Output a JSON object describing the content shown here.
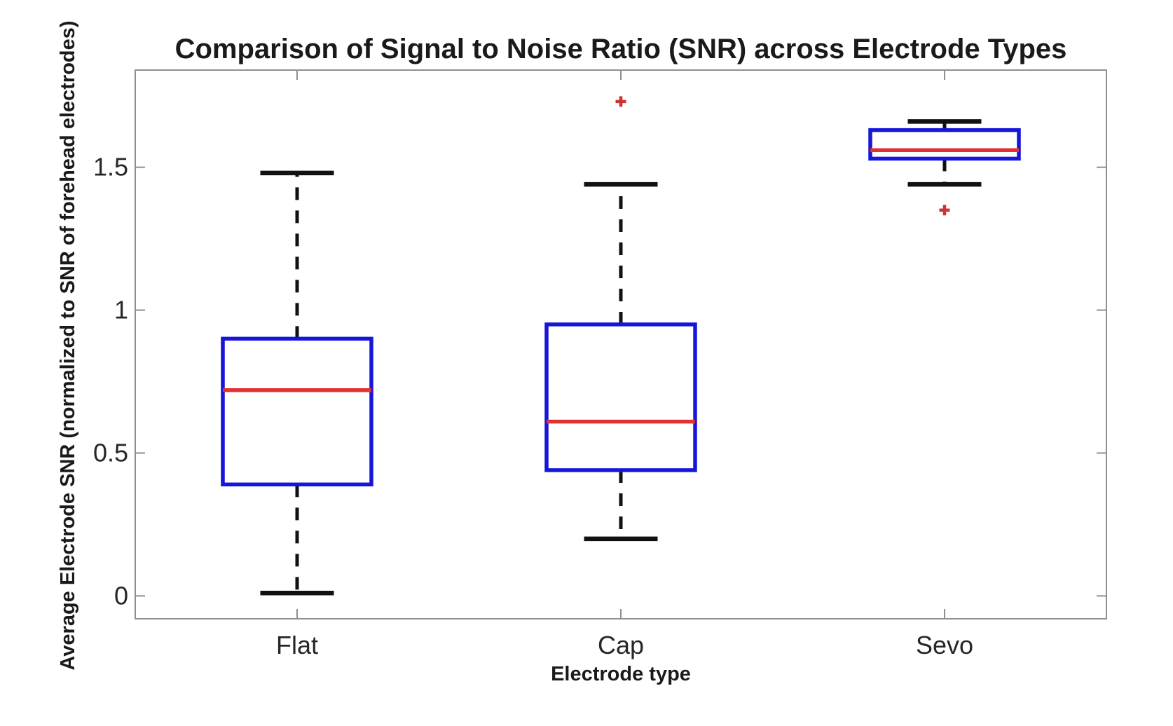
{
  "chart_data": {
    "type": "boxplot",
    "title": "Comparison of Signal to Noise Ratio (SNR) across Electrode Types",
    "xlabel": "Electrode type",
    "ylabel": "Average Electrode SNR (normalized to SNR of forehead electrodes)",
    "categories": [
      "Flat",
      "Cap",
      "Sevo"
    ],
    "yticks": [
      0,
      0.5,
      1,
      1.5
    ],
    "ytick_labels": [
      "0",
      "0.5",
      "1",
      "1.5"
    ],
    "ylim": [
      -0.08,
      1.84
    ],
    "xlim": [
      0.5,
      3.5
    ],
    "grid": false,
    "legend": null,
    "boxes": [
      {
        "category": "Flat",
        "whisker_low": 0.01,
        "q1": 0.39,
        "median": 0.72,
        "q3": 0.9,
        "whisker_high": 1.48,
        "outliers": []
      },
      {
        "category": "Cap",
        "whisker_low": 0.2,
        "q1": 0.44,
        "median": 0.61,
        "q3": 0.95,
        "whisker_high": 1.44,
        "outliers": [
          1.73
        ]
      },
      {
        "category": "Sevo",
        "whisker_low": 1.44,
        "q1": 1.53,
        "median": 1.56,
        "q3": 1.63,
        "whisker_high": 1.66,
        "outliers": [
          1.35
        ]
      }
    ],
    "colors": {
      "box": "#1616d9",
      "median": "#e13232",
      "whisker": "#111111",
      "cap": "#111111",
      "outlier": "#cc3333",
      "axis": "#8f8f8f",
      "tick_label": "#262626",
      "background": "#ffffff"
    }
  }
}
